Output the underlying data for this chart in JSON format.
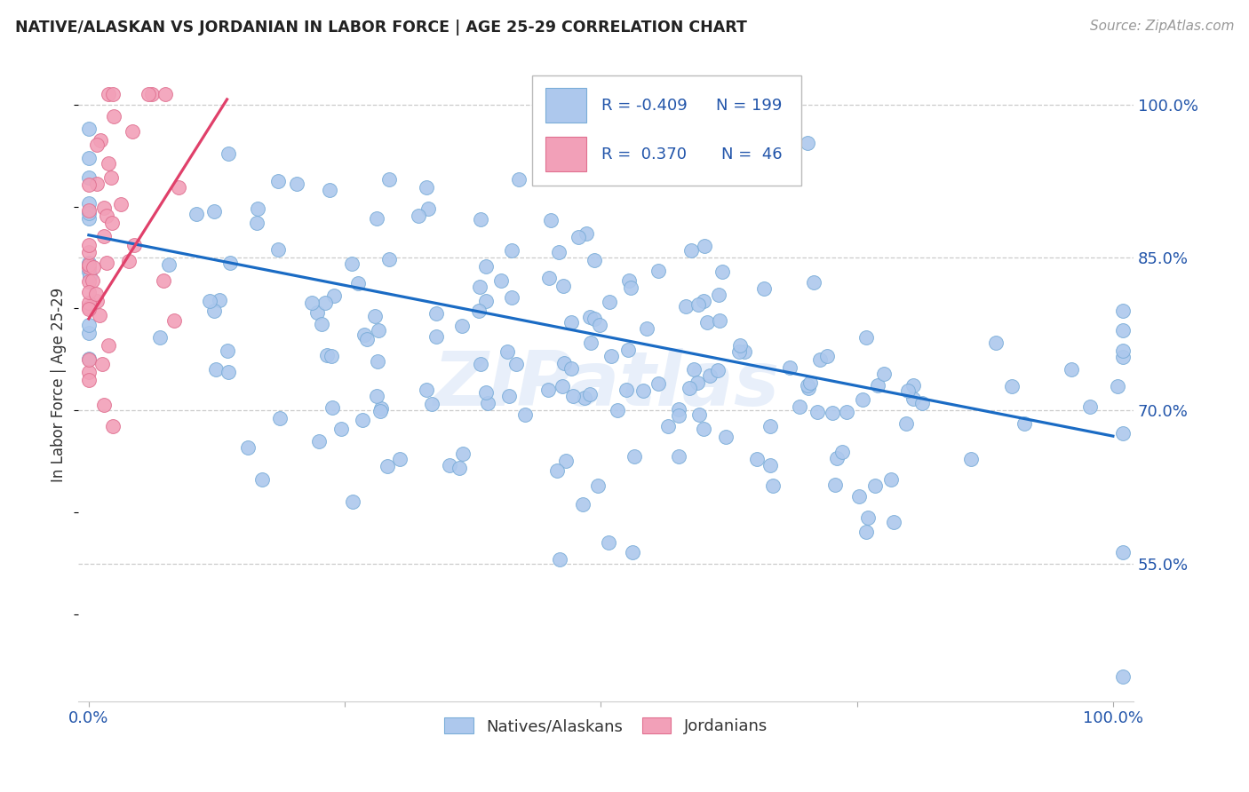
{
  "title": "NATIVE/ALASKAN VS JORDANIAN IN LABOR FORCE | AGE 25-29 CORRELATION CHART",
  "source": "Source: ZipAtlas.com",
  "ylabel": "In Labor Force | Age 25-29",
  "blue_color": "#adc8ed",
  "blue_edge_color": "#7aadd8",
  "pink_color": "#f2a0b8",
  "pink_edge_color": "#e07090",
  "blue_line_color": "#1a6bc4",
  "pink_line_color": "#e0406a",
  "watermark": "ZIPatlas",
  "xlim_low": -0.01,
  "xlim_high": 1.02,
  "ylim_low": 0.415,
  "ylim_high": 1.035,
  "ytick_positions": [
    0.55,
    0.7,
    0.85,
    1.0
  ],
  "ytick_labels": [
    "55.0%",
    "70.0%",
    "85.0%",
    "100.0%"
  ],
  "xtick_positions": [
    0.0,
    0.25,
    0.5,
    0.75,
    1.0
  ],
  "xtick_labels": [
    "0.0%",
    "",
    "",
    "",
    "100.0%"
  ],
  "legend_items": [
    {
      "color": "#adc8ed",
      "edge": "#7aadd8",
      "R": "R = -0.409",
      "N": "N = 199"
    },
    {
      "color": "#f2a0b8",
      "edge": "#e07090",
      "R": "R =  0.370",
      "N": "N =  46"
    }
  ],
  "blue_N": 199,
  "pink_N": 46,
  "blue_R": -0.409,
  "pink_R": 0.37,
  "blue_line_x0": 0.0,
  "blue_line_y0": 0.872,
  "blue_line_x1": 1.0,
  "blue_line_y1": 0.675,
  "pink_line_x0": 0.0,
  "pink_line_y0": 0.79,
  "pink_line_x1": 0.135,
  "pink_line_y1": 1.005
}
